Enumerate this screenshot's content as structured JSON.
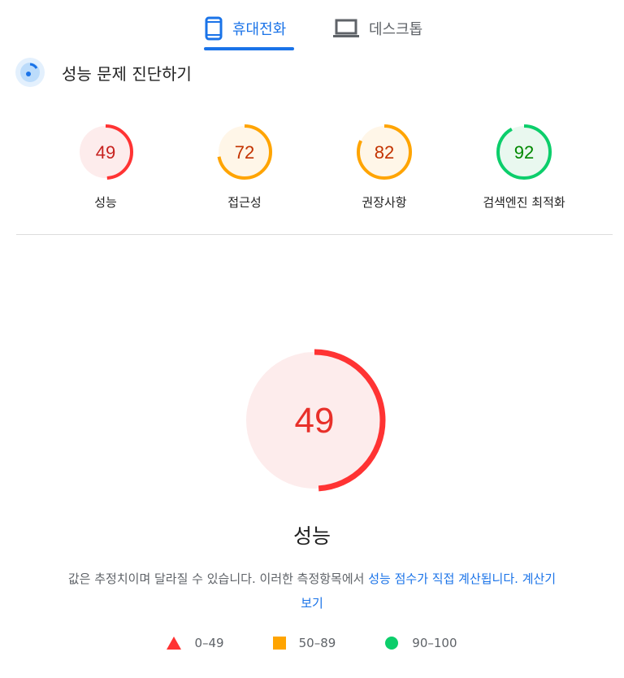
{
  "tabs": [
    {
      "label": "휴대전화",
      "icon": "smartphone-icon",
      "active": true
    },
    {
      "label": "데스크톱",
      "icon": "laptop-icon",
      "active": false
    }
  ],
  "header": {
    "title": "성능 문제 진단하기",
    "icon": "lighthouse-gauge-icon"
  },
  "categories": [
    {
      "label": "성능",
      "score": 49,
      "rating": "fail"
    },
    {
      "label": "접근성",
      "score": 72,
      "rating": "average"
    },
    {
      "label": "권장사항",
      "score": 82,
      "rating": "average"
    },
    {
      "label": "검색엔진 최적화",
      "score": 92,
      "rating": "pass"
    }
  ],
  "main": {
    "score": 49,
    "title": "성능",
    "desc": "값은 추정치이며 달라질 수 있습니다. 이러한 측정항목에서 ",
    "link1": "성능 점수가 직접 계산됩니다.",
    "link2": "계산기 보기"
  },
  "legend": [
    {
      "label": "0–49",
      "shape": "triangle",
      "color": "#ff3333"
    },
    {
      "label": "50–89",
      "shape": "square",
      "color": "#ffa400"
    },
    {
      "label": "90–100",
      "shape": "circle",
      "color": "#0cce6b"
    }
  ],
  "colors": {
    "fail": {
      "arc": "#ff3333",
      "bg": "#fdecec",
      "text": "#c7221f"
    },
    "average": {
      "arc": "#ffa400",
      "bg": "#fff6e8",
      "text": "#c33300"
    },
    "pass": {
      "arc": "#0cce6b",
      "bg": "#e9f8ef",
      "text": "#008800"
    },
    "accent": "#1a73e8"
  }
}
